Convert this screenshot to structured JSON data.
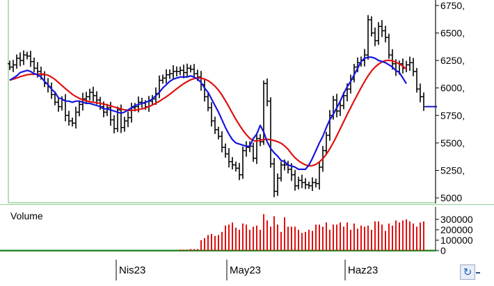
{
  "chart_data": [
    {
      "type": "ohlc",
      "title": "",
      "xlabel": "",
      "ylabel": "",
      "ylim": [
        4950,
        6800
      ],
      "y_ticks": [
        5000,
        5250,
        5500,
        5750,
        6000,
        6250,
        6500,
        6750
      ],
      "y_tick_labels": [
        "5000",
        "5250,",
        "5500,",
        "5750,",
        "6000,",
        "6250,",
        "6500,",
        "6750,"
      ],
      "last_value": 5830,
      "colors": {
        "price_bars": "#000000",
        "ma_short": "#1515e0",
        "ma_long": "#e01010",
        "border": "#9ed49e",
        "last_value_line": "#1515e0"
      },
      "close": [
        6190,
        6210,
        6270,
        6250,
        6300,
        6290,
        6240,
        6180,
        6150,
        6120,
        6040,
        6010,
        5940,
        5870,
        5830,
        5890,
        5750,
        5700,
        5680,
        5780,
        5850,
        5900,
        5920,
        5960,
        5930,
        5890,
        5830,
        5780,
        5820,
        5710,
        5630,
        5800,
        5640,
        5700,
        5730,
        5820,
        5830,
        5870,
        5860,
        5830,
        5880,
        5900,
        5950,
        6070,
        6090,
        6120,
        6130,
        6150,
        6150,
        6160,
        6140,
        6180,
        6170,
        6130,
        6100,
        6030,
        5920,
        5820,
        5700,
        5620,
        5560,
        5460,
        5400,
        5330,
        5300,
        5270,
        5210,
        5430,
        5460,
        5470,
        5360,
        5540,
        5510,
        6040,
        5880,
        5310,
        5060,
        5180,
        5300,
        5300,
        5260,
        5210,
        5110,
        5160,
        5140,
        5120,
        5110,
        5140,
        5130,
        5280,
        5430,
        5570,
        5750,
        5890,
        5790,
        5840,
        5930,
        5990,
        6080,
        6190,
        6230,
        6250,
        6300,
        6620,
        6500,
        6430,
        6560,
        6520,
        6460,
        6300,
        6220,
        6150,
        6220,
        6180,
        6210,
        6230,
        6150,
        5990,
        5920,
        5830
      ],
      "ma_short": [
        6070,
        6090,
        6110,
        6140,
        6150,
        6160,
        6150,
        6130,
        6120,
        6100,
        6060,
        6030,
        5990,
        5960,
        5910,
        5900,
        5880,
        5880,
        5870,
        5880,
        5880,
        5870,
        5860,
        5860,
        5850,
        5840,
        5830,
        5810,
        5810,
        5800,
        5790,
        5780,
        5770,
        5780,
        5800,
        5820,
        5840,
        5850,
        5860,
        5870,
        5880,
        5900,
        5930,
        5960,
        6000,
        6030,
        6060,
        6080,
        6090,
        6100,
        6100,
        6100,
        6110,
        6100,
        6080,
        6050,
        6000,
        5960,
        5900,
        5840,
        5780,
        5710,
        5640,
        5580,
        5530,
        5500,
        5490,
        5480,
        5470,
        5470,
        5540,
        5580,
        5660,
        5600,
        5510,
        5450,
        5410,
        5380,
        5340,
        5330,
        5300,
        5290,
        5280,
        5260,
        5260,
        5260,
        5300,
        5360,
        5430,
        5500,
        5560,
        5640,
        5710,
        5760,
        5820,
        5880,
        5950,
        6010,
        6060,
        6120,
        6180,
        6240,
        6270,
        6280,
        6280,
        6270,
        6250,
        6240,
        6230,
        6210,
        6190,
        6160,
        6140,
        6090,
        6040
      ]
    },
    {
      "type": "bar",
      "title": "Volume",
      "ylim": [
        0,
        400000
      ],
      "y_ticks": [
        0,
        100000,
        200000,
        300000
      ],
      "y_tick_labels": [
        "0",
        "100000",
        "200000",
        "300000"
      ],
      "colors": {
        "bars": "#e01010",
        "baseline": "#2a8a2a"
      },
      "values": [
        0,
        0,
        0,
        0,
        0,
        0,
        0,
        0,
        0,
        0,
        0,
        0,
        0,
        0,
        0,
        0,
        0,
        0,
        0,
        0,
        0,
        0,
        0,
        0,
        0,
        0,
        0,
        0,
        0,
        0,
        0,
        0,
        0,
        0,
        0,
        0,
        0,
        0,
        0,
        0,
        0,
        0,
        0,
        0,
        0,
        0,
        0,
        0,
        0,
        10000,
        10000,
        10000,
        15000,
        15000,
        15000,
        100000,
        120000,
        150000,
        160000,
        140000,
        150000,
        180000,
        240000,
        250000,
        270000,
        220000,
        200000,
        260000,
        250000,
        200000,
        230000,
        240000,
        200000,
        350000,
        290000,
        230000,
        330000,
        250000,
        180000,
        320000,
        230000,
        230000,
        230000,
        200000,
        170000,
        180000,
        200000,
        190000,
        250000,
        250000,
        230000,
        270000,
        200000,
        250000,
        250000,
        270000,
        230000,
        270000,
        200000,
        260000,
        210000,
        240000,
        230000,
        240000,
        200000,
        280000,
        280000,
        250000,
        190000,
        260000,
        240000,
        290000,
        270000,
        290000,
        300000,
        280000,
        260000,
        230000,
        270000,
        280000
      ]
    },
    {
      "type": "axis",
      "x_tick_labels": [
        "Nis23",
        "May23",
        "Haz23"
      ]
    }
  ],
  "icons": {
    "refresh": "refresh-icon",
    "refresh_glyph": "↻"
  }
}
